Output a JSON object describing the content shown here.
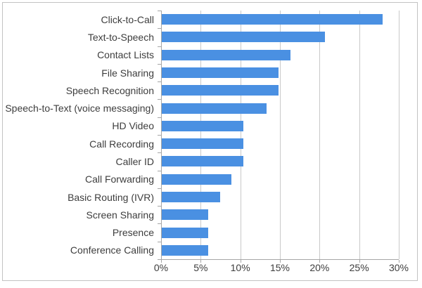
{
  "chart_data": {
    "type": "bar",
    "orientation": "horizontal",
    "title": "",
    "xlabel": "",
    "ylabel": "",
    "categories": [
      "Click-to-Call",
      "Text-to-Speech",
      "Contact Lists",
      "File Sharing",
      "Speech Recognition",
      "Speech-to-Text (voice messaging)",
      "HD Video",
      "Call Recording",
      "Caller ID",
      "Call Forwarding",
      "Basic Routing (IVR)",
      "Screen Sharing",
      "Presence",
      "Conference Calling"
    ],
    "values": [
      27.9,
      20.6,
      16.2,
      14.7,
      14.7,
      13.2,
      10.3,
      10.3,
      10.3,
      8.8,
      7.4,
      5.9,
      5.9,
      5.9
    ],
    "value_unit": "%",
    "xlim": [
      0,
      30
    ],
    "x_tick_step": 5,
    "x_tick_labels": [
      "0%",
      "5%",
      "10%",
      "15%",
      "20%",
      "25%",
      "30%"
    ],
    "grid": "vertical-on",
    "legend": "none",
    "colors": {
      "bar": "#4a90e2",
      "gridline": "#c9c9c9",
      "axis": "#a6a6a6",
      "frame_border": "#c3c3c3",
      "text": "#3d3d3d",
      "background": "#ffffff"
    }
  }
}
